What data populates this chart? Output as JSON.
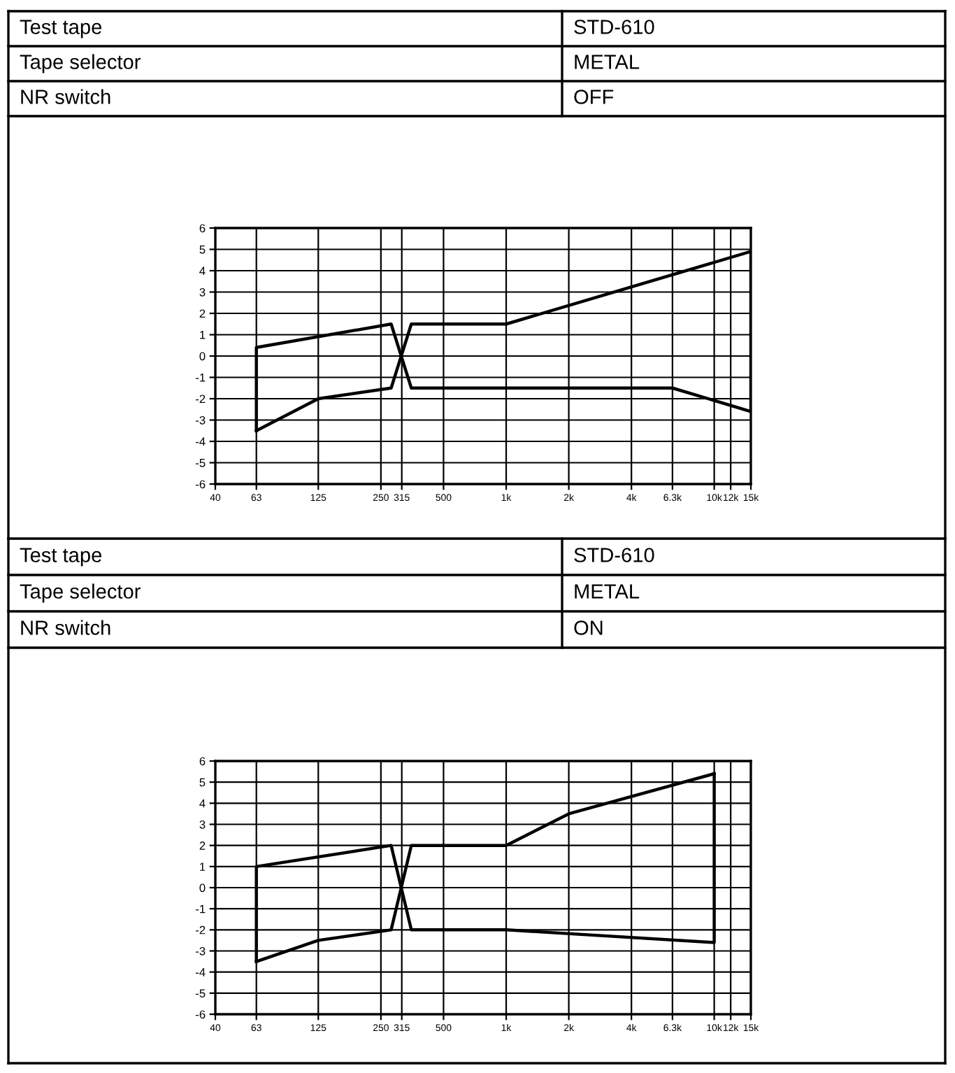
{
  "chart_data": [
    {
      "type": "line",
      "annotations": [
        "Test tape",
        "STD-610",
        "Tape selector",
        "METAL",
        "NR switch",
        "OFF"
      ],
      "series": [
        {
          "color": "#000000",
          "x": [
            63,
            63,
            280,
            350,
            6300,
            15000,
            15000
          ],
          "values": [
            -3.5,
            0.4,
            1.5,
            -1.5,
            -1.5,
            -2.6,
            4.9
          ]
        },
        {
          "color": "#000000",
          "x": [
            63,
            125,
            280,
            350,
            1000,
            15000
          ],
          "values": [
            -3.5,
            -2.0,
            -1.5,
            1.5,
            1.5,
            4.9
          ]
        }
      ],
      "log": "x",
      "xlim": [
        40,
        15000
      ],
      "ylim": [
        -6,
        6
      ],
      "xticks": [
        40,
        63,
        125,
        250,
        315,
        500,
        {
          "value": 1000,
          "label": "1k"
        },
        {
          "value": 2000,
          "label": "2k"
        },
        {
          "value": 4000,
          "label": "4k"
        },
        {
          "value": 6300,
          "label": "6.3k"
        },
        {
          "value": 10000,
          "label": "10k"
        },
        {
          "value": 12000,
          "label": "12k"
        },
        {
          "value": 15000,
          "label": "15k"
        }
      ],
      "yticks": [
        -6,
        -5,
        -4,
        -3,
        -2,
        -1,
        0,
        1,
        2,
        3,
        4,
        5,
        6
      ],
      "grid": true,
      "marker": "none",
      "line_style": "solid"
    },
    {
      "type": "line",
      "annotations": [
        "Test tape",
        "STD-610",
        "Tape selector",
        "METAL",
        "NR switch",
        "ON"
      ],
      "series": [
        {
          "color": "#000000",
          "x": [
            63,
            63,
            280,
            350,
            1000,
            10000,
            10000
          ],
          "values": [
            -3.5,
            1.0,
            2.0,
            -2.0,
            -2.0,
            -2.6,
            5.4
          ]
        },
        {
          "color": "#000000",
          "x": [
            63,
            125,
            280,
            350,
            1000,
            2000,
            10000
          ],
          "values": [
            -3.5,
            -2.5,
            -2.0,
            2.0,
            2.0,
            3.5,
            5.4
          ]
        }
      ],
      "log": "x",
      "xlim": [
        40,
        15000
      ],
      "ylim": [
        -6,
        6
      ],
      "xticks": [
        40,
        63,
        125,
        250,
        315,
        500,
        {
          "value": 1000,
          "label": "1k"
        },
        {
          "value": 2000,
          "label": "2k"
        },
        {
          "value": 4000,
          "label": "4k"
        },
        {
          "value": 6300,
          "label": "6.3k"
        },
        {
          "value": 10000,
          "label": "10k"
        },
        {
          "value": 12000,
          "label": "12k"
        },
        {
          "value": 15000,
          "label": "15k"
        }
      ],
      "yticks": [
        -6,
        -5,
        -4,
        -3,
        -2,
        -1,
        0,
        1,
        2,
        3,
        4,
        5,
        6
      ],
      "grid": true,
      "marker": "none",
      "line_style": "solid"
    }
  ]
}
